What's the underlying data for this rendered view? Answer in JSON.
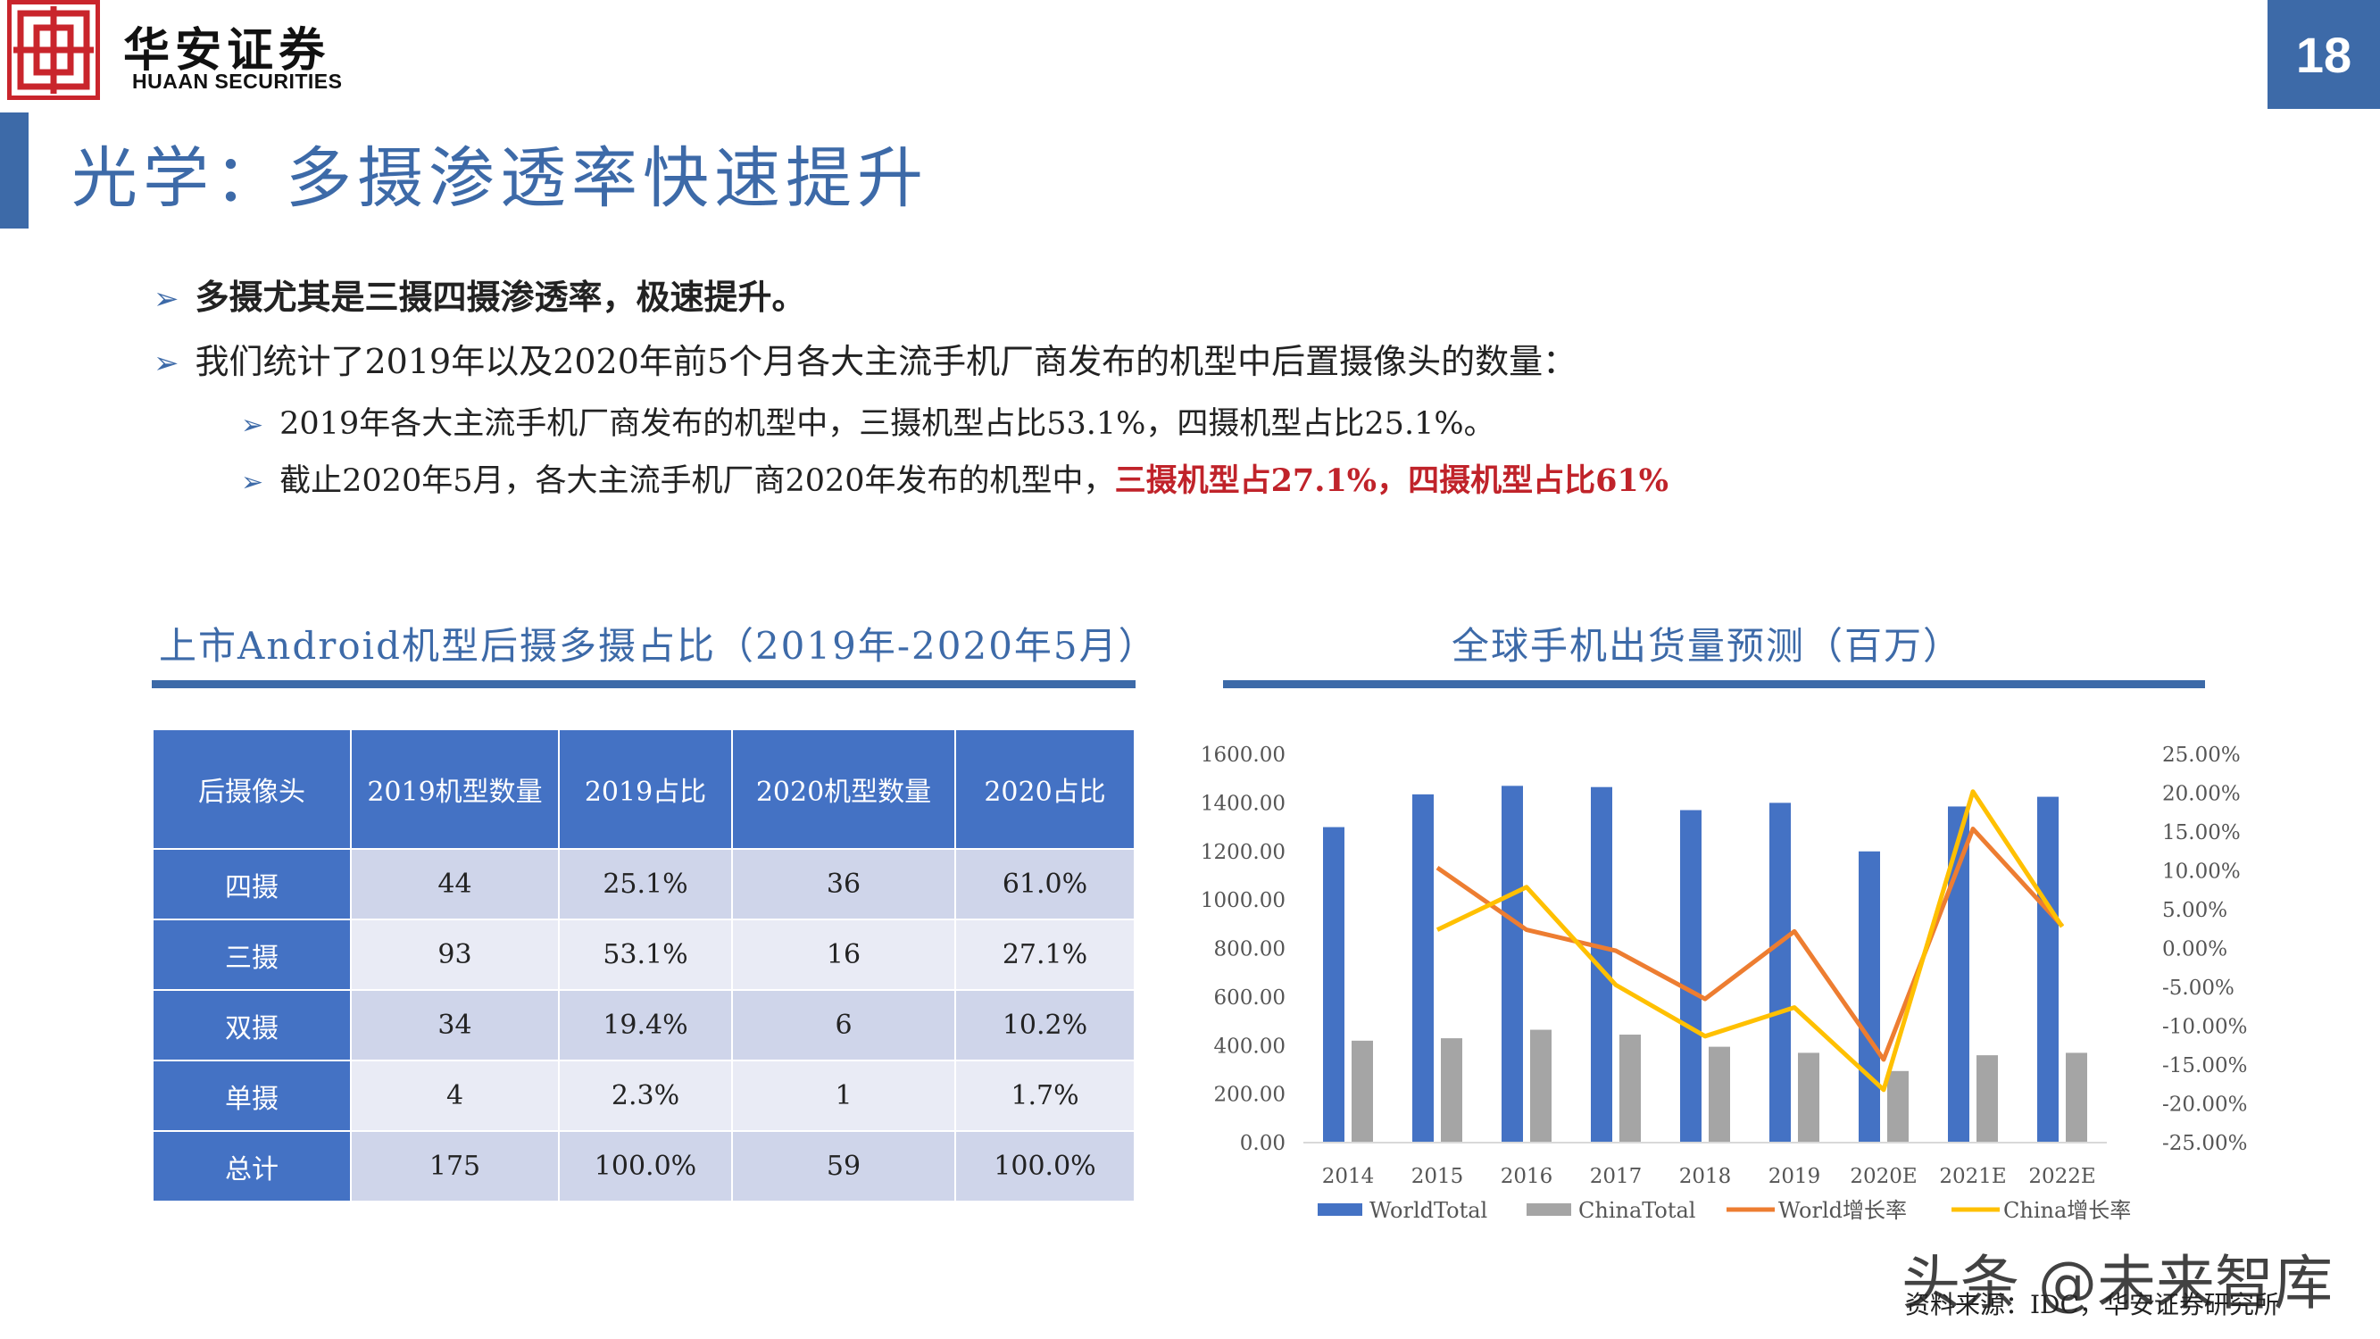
{
  "header": {
    "logo_cn": "华安证券",
    "logo_en": "HUAAN SECURITIES",
    "page_number": "18",
    "brand_color": "#3d6aa8",
    "logo_color": "#c9252c"
  },
  "title": "光学：多摄渗透率快速提升",
  "bullets": [
    {
      "text": "多摄尤其是三摄四摄渗透率，极速提升。"
    },
    {
      "text": "我们统计了2019年以及2020年前5个月各大主流手机厂商发布的机型中后置摄像头的数量："
    }
  ],
  "sub_bullets": [
    {
      "text": "2019年各大主流手机厂商发布的机型中，三摄机型占比53.1%，四摄机型占比25.1%。"
    },
    {
      "text_plain": "截止2020年5月，各大主流手机厂商2020年发布的机型中，",
      "text_red": "三摄机型占27.1%，四摄机型占比61%"
    }
  ],
  "table_section": {
    "title": "上市Android机型后摄多摄占比（2019年-2020年5月）",
    "headers": [
      "后摄像头",
      "2019机型数量",
      "2019占比",
      "2020机型数量",
      "2020占比"
    ],
    "rows": [
      [
        "四摄",
        "44",
        "25.1%",
        "36",
        "61.0%"
      ],
      [
        "三摄",
        "93",
        "53.1%",
        "16",
        "27.1%"
      ],
      [
        "双摄",
        "34",
        "19.4%",
        "6",
        "10.2%"
      ],
      [
        "单摄",
        "4",
        "2.3%",
        "1",
        "1.7%"
      ],
      [
        "总计",
        "175",
        "100.0%",
        "59",
        "100.0%"
      ]
    ]
  },
  "chart_section": {
    "title": "全球手机出货量预测（百万）"
  },
  "chart_data": {
    "type": "bar",
    "title": "全球手机出货量预测（百万）",
    "categories": [
      "2014",
      "2015",
      "2016",
      "2017",
      "2018",
      "2019",
      "2020E",
      "2021E",
      "2022E"
    ],
    "y_left_ticks": [
      "1600.00",
      "1400.00",
      "1200.00",
      "1000.00",
      "800.00",
      "600.00",
      "400.00",
      "200.00",
      "0.00"
    ],
    "y_right_ticks": [
      "25.00%",
      "20.00%",
      "15.00%",
      "10.00%",
      "5.00%",
      "0.00%",
      "-5.00%",
      "-10.00%",
      "-15.00%",
      "-20.00%",
      "-25.00%"
    ],
    "ylim_left": [
      0,
      1600
    ],
    "ylim_right": [
      -25,
      25
    ],
    "series": [
      {
        "name": "WorldTotal",
        "type": "bar",
        "axis": "left",
        "color": "#4472c4",
        "values": [
          1300,
          1435,
          1470,
          1465,
          1370,
          1400,
          1200,
          1385,
          1425
        ]
      },
      {
        "name": "ChinaTotal",
        "type": "bar",
        "axis": "left",
        "color": "#a5a5a5",
        "values": [
          420,
          430,
          465,
          445,
          395,
          370,
          295,
          360,
          370
        ]
      },
      {
        "name": "World增长率",
        "type": "line",
        "axis": "right",
        "color": "#ed7d31",
        "values": [
          null,
          10.4,
          2.4,
          -0.3,
          -6.5,
          2.2,
          -14.3,
          15.4,
          2.9
        ]
      },
      {
        "name": "China增长率",
        "type": "line",
        "axis": "right",
        "color": "#ffc000",
        "values": [
          null,
          2.4,
          7.9,
          -4.7,
          -11.3,
          -7.6,
          -18.2,
          20.2,
          2.8
        ]
      }
    ],
    "legend": "bottom",
    "grid": false
  },
  "source": "资料来源：IDC，华安证券研究所",
  "watermark": "头条 @未来智库"
}
